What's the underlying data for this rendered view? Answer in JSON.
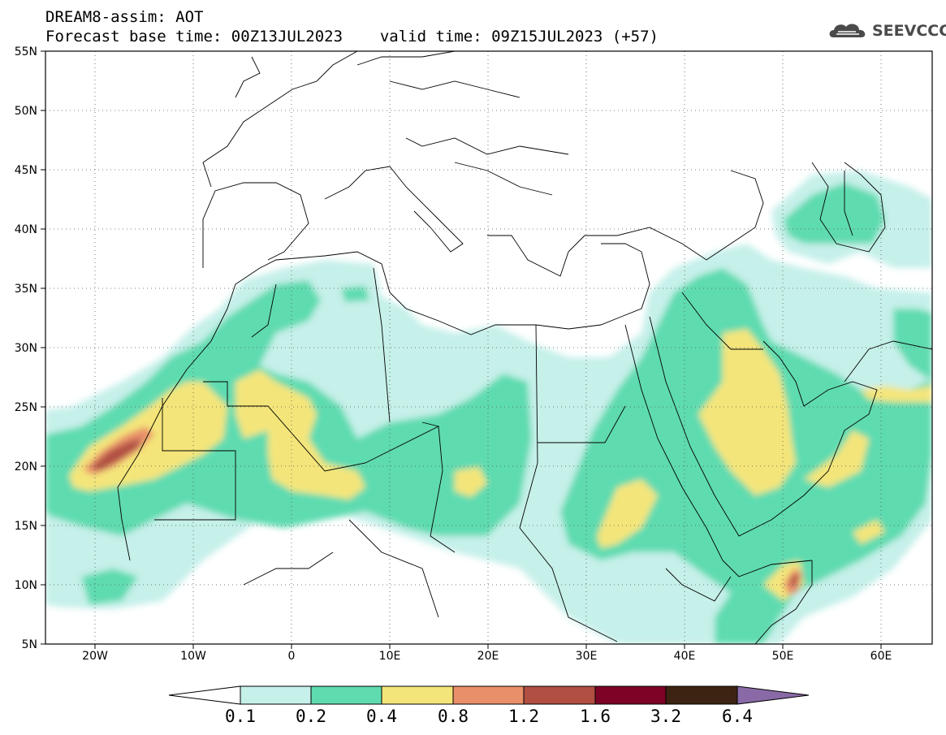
{
  "header": {
    "model_field": "DREAM8-assim: AOT",
    "base_time_label": "Forecast base time: 00Z13JUL2023",
    "valid_time_label": "valid time: 09Z15JUL2023 (+57)"
  },
  "logo": {
    "text": "SEEVCCC"
  },
  "map": {
    "lat_ticks": [
      "55N",
      "50N",
      "45N",
      "40N",
      "35N",
      "30N",
      "25N",
      "20N",
      "15N",
      "10N",
      "5N"
    ],
    "lon_ticks": [
      "20W",
      "10W",
      "0",
      "10E",
      "20E",
      "30E",
      "40E",
      "50E",
      "60E"
    ],
    "extent_lon": [
      -25,
      65
    ],
    "extent_lat": [
      5,
      55
    ],
    "grid": "dotted"
  },
  "colorbar": {
    "levels": [
      "0.1",
      "0.2",
      "0.4",
      "0.8",
      "1.2",
      "1.6",
      "3.2",
      "6.4"
    ],
    "colors": [
      "#ffffff",
      "#c6f0ea",
      "#5fdbb0",
      "#f4e57a",
      "#e9906a",
      "#b04f42",
      "#7d0326",
      "#3d2412",
      "#8a6aa6"
    ]
  }
}
